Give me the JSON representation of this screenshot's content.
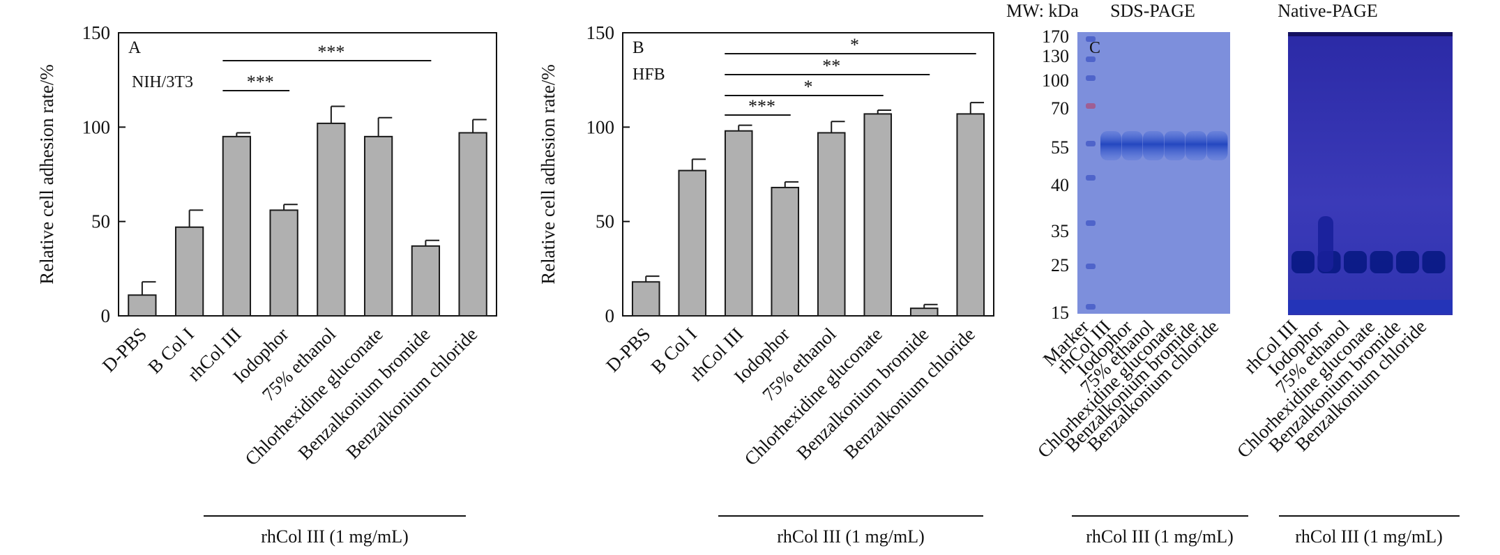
{
  "colors": {
    "bar_fill": "#b0b0b0",
    "bar_stroke": "#1a1a1a",
    "sds_gel_bg": "#7d8fdc",
    "sds_band": "#2a4fc4",
    "native_gel_bg": "#3a2fb0",
    "native_band": "#0a1580"
  },
  "chart_data": [
    {
      "type": "bar",
      "panel_letter": "A",
      "cell_label": "NIH/3T3",
      "ylabel": "Relative cell adhesion rate/%",
      "ylim": [
        0,
        150
      ],
      "yticks": [
        "0",
        "50",
        "100",
        "150"
      ],
      "categories": [
        "D-PBS",
        "B Col I",
        "rhCol III",
        "Iodophor",
        "75% ethanol",
        "Chlorhexidine gluconate",
        "Benzalkonium bromide",
        "Benzalkonium chloride"
      ],
      "values": [
        11,
        47,
        95,
        56,
        102,
        95,
        37,
        97
      ],
      "errors": [
        7,
        9,
        2,
        3,
        9,
        10,
        3,
        7
      ],
      "significance": [
        {
          "from": "rhCol III",
          "to": "Iodophor",
          "label": "***"
        },
        {
          "from": "rhCol III",
          "to": "Benzalkonium bromide",
          "label": "***"
        }
      ],
      "group_label": "rhCol III (1 mg/mL)"
    },
    {
      "type": "bar",
      "panel_letter": "B",
      "cell_label": "HFB",
      "ylabel": "Relative cell adhesion rate/%",
      "ylim": [
        0,
        150
      ],
      "yticks": [
        "0",
        "50",
        "100",
        "150"
      ],
      "categories": [
        "D-PBS",
        "B Col I",
        "rhCol III",
        "Iodophor",
        "75% ethanol",
        "Chlorhexidine gluconate",
        "Benzalkonium bromide",
        "Benzalkonium chloride"
      ],
      "values": [
        18,
        77,
        98,
        68,
        97,
        107,
        4,
        107
      ],
      "errors": [
        3,
        6,
        3,
        3,
        6,
        2,
        2,
        6
      ],
      "significance": [
        {
          "from": "rhCol III",
          "to": "Iodophor",
          "label": "***"
        },
        {
          "from": "rhCol III",
          "to": "Chlorhexidine gluconate",
          "label": "*"
        },
        {
          "from": "rhCol III",
          "to": "Benzalkonium bromide",
          "label": "**"
        },
        {
          "from": "rhCol III",
          "to": "Benzalkonium chloride",
          "label": "*"
        }
      ],
      "group_label": "rhCol III (1 mg/mL)"
    }
  ],
  "gels": {
    "panel_letter": "C",
    "mw_title": "MW: kDa",
    "mw_ticks": [
      "170",
      "130",
      "100",
      "70",
      "55",
      "40",
      "35",
      "25",
      "15"
    ],
    "sds": {
      "title": "SDS-PAGE",
      "lanes": [
        "Marker",
        "rhCol III",
        "Iodophor",
        "75% ethanol",
        "Chlorhexidine gluconate",
        "Benzalkonium bromide",
        "Benzalkonium chloride"
      ],
      "group_label": "rhCol III (1 mg/mL)"
    },
    "native": {
      "title": "Native-PAGE",
      "lanes": [
        "rhCol III",
        "Iodophor",
        "75% ethanol",
        "Chlorhexidine gluconate",
        "Benzalkonium bromide",
        "Benzalkonium chloride"
      ],
      "group_label": "rhCol III (1 mg/mL)"
    }
  }
}
